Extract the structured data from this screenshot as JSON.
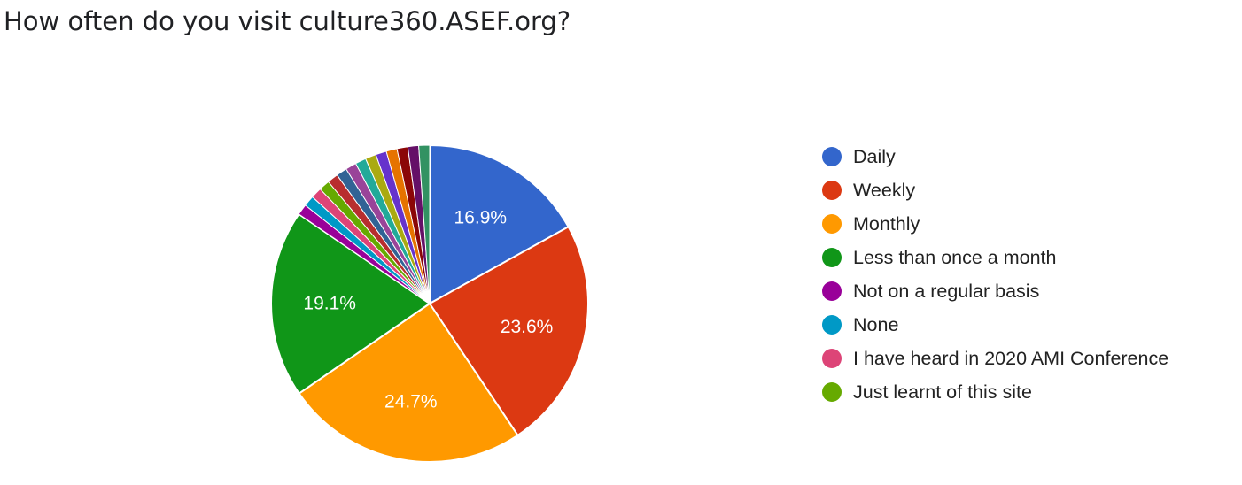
{
  "chart_data": {
    "type": "pie",
    "title": "How often do you visit culture360.ASEF.org?",
    "start_angle_deg": 90,
    "direction": "clockwise",
    "legend_position": "right",
    "slices": [
      {
        "label": "Daily",
        "value": 16.9,
        "color": "#3366cc",
        "data_label": "16.9%",
        "in_legend": true
      },
      {
        "label": "Weekly",
        "value": 23.6,
        "color": "#dc3912",
        "data_label": "23.6%",
        "in_legend": true
      },
      {
        "label": "Monthly",
        "value": 24.7,
        "color": "#ff9900",
        "data_label": "24.7%",
        "in_legend": true
      },
      {
        "label": "Less than once a month",
        "value": 19.1,
        "color": "#109618",
        "data_label": "19.1%",
        "in_legend": true
      },
      {
        "label": "Not on a regular basis",
        "value": 1.1,
        "color": "#990099",
        "data_label": "",
        "in_legend": true
      },
      {
        "label": "None",
        "value": 1.1,
        "color": "#0099c6",
        "data_label": "",
        "in_legend": true
      },
      {
        "label": "I have heard in 2020 AMI Conference",
        "value": 1.1,
        "color": "#dd4477",
        "data_label": "",
        "in_legend": true
      },
      {
        "label": "Just learnt of this site",
        "value": 1.1,
        "color": "#66aa00",
        "data_label": "",
        "in_legend": true
      },
      {
        "label": "",
        "value": 1.1,
        "color": "#b82e2e",
        "data_label": "",
        "in_legend": false
      },
      {
        "label": "",
        "value": 1.1,
        "color": "#316395",
        "data_label": "",
        "in_legend": false
      },
      {
        "label": "",
        "value": 1.1,
        "color": "#994499",
        "data_label": "",
        "in_legend": false
      },
      {
        "label": "",
        "value": 1.1,
        "color": "#22aa99",
        "data_label": "",
        "in_legend": false
      },
      {
        "label": "",
        "value": 1.1,
        "color": "#aaaa11",
        "data_label": "",
        "in_legend": false
      },
      {
        "label": "",
        "value": 1.1,
        "color": "#6633cc",
        "data_label": "",
        "in_legend": false
      },
      {
        "label": "",
        "value": 1.1,
        "color": "#e67300",
        "data_label": "",
        "in_legend": false
      },
      {
        "label": "",
        "value": 1.1,
        "color": "#8b0707",
        "data_label": "",
        "in_legend": false
      },
      {
        "label": "",
        "value": 1.1,
        "color": "#651067",
        "data_label": "",
        "in_legend": false
      },
      {
        "label": "",
        "value": 1.1,
        "color": "#329262",
        "data_label": "",
        "in_legend": false
      }
    ]
  }
}
